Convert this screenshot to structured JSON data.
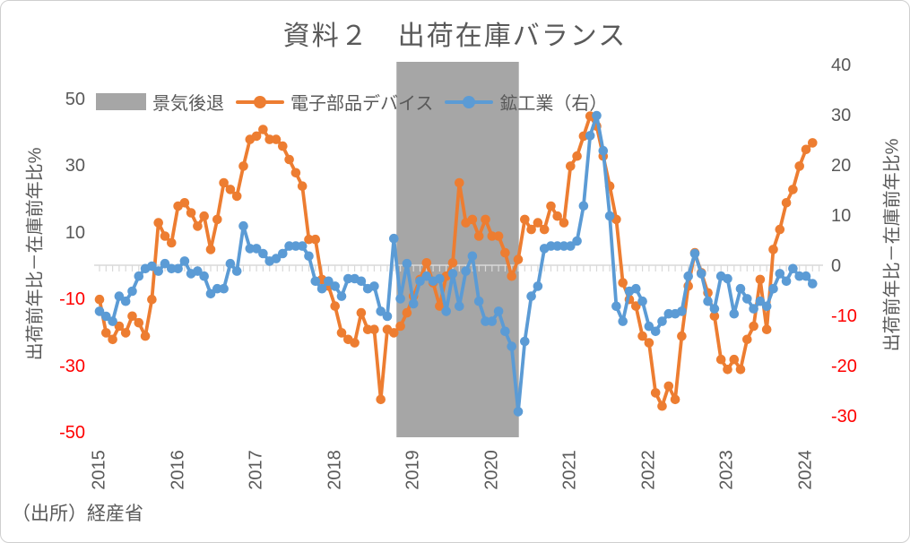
{
  "page": {
    "source": "（出所）経産省"
  },
  "chart_data": {
    "type": "line",
    "title": "資料２　出荷在庫バランス",
    "start_month": "2015-01",
    "frequency": "monthly",
    "x_tick_years": [
      "2015",
      "2016",
      "2017",
      "2018",
      "2019",
      "2020",
      "2021",
      "2022",
      "2023",
      "2024"
    ],
    "recession": {
      "label": "景気後退",
      "start": "2018-11",
      "end": "2020-05",
      "color": "#a6a6a6"
    },
    "left_axis": {
      "title": "出荷前年比－在庫前年比%",
      "tick_labels": [
        50,
        30,
        10,
        -10,
        -30,
        -50
      ],
      "range": [
        -50,
        50
      ]
    },
    "right_axis": {
      "title": "出荷前年比－在庫前年比%",
      "tick_labels": [
        40,
        30,
        20,
        10,
        0,
        -10,
        -20,
        -30
      ],
      "range": [
        -30,
        40
      ]
    },
    "colors": {
      "electronic_parts": "#ED7D31",
      "mining_industry": "#5B9BD5",
      "recession_band": "#a6a6a6",
      "zero_line": "#d9d9d9",
      "text": "#595959",
      "negative_tick": "#ff0000"
    },
    "series": [
      {
        "name": "電子部品デバイス",
        "axis": "left",
        "color": "#ED7D31",
        "values": [
          -10,
          -20,
          -22,
          -18,
          -20,
          -15,
          -17,
          -21,
          -10,
          13,
          9,
          7,
          18,
          19,
          16,
          12,
          15,
          5,
          14,
          25,
          23,
          21,
          30,
          38,
          39,
          41,
          38,
          38,
          36,
          32,
          28,
          24,
          8,
          8,
          -4,
          -6,
          -12,
          -20,
          -22,
          -23,
          -14,
          -19,
          -19,
          -40,
          -19,
          -20,
          -18,
          -14,
          -9,
          -4,
          1,
          -5,
          -12,
          -3,
          1,
          25,
          13,
          14,
          9,
          14,
          9,
          9,
          4,
          -3,
          2,
          14,
          11,
          13,
          11,
          18,
          15,
          13,
          30,
          33,
          39,
          45,
          42,
          33,
          24,
          14,
          -5,
          -10,
          -12,
          -21,
          -23,
          -38,
          -42,
          -36,
          -40,
          -21,
          -6,
          4,
          -2,
          -8,
          -15,
          -28,
          -31,
          -28,
          -31,
          -22,
          -18,
          -4,
          -19,
          5,
          11,
          19,
          23,
          30,
          35,
          37
        ]
      },
      {
        "name": "鉱工業（右）",
        "axis": "right",
        "color": "#5B9BD5",
        "values": [
          -9,
          -10,
          -11,
          -6,
          -7,
          -5,
          -2,
          -0.5,
          0,
          -1,
          0.5,
          -0.5,
          -0.5,
          1,
          -1.5,
          -1,
          -2,
          -5.5,
          -4.5,
          -4.5,
          0.5,
          -1,
          8,
          3.5,
          3.5,
          2.5,
          1,
          1.5,
          2.5,
          4,
          4,
          4,
          2,
          -3,
          -4.5,
          -3,
          -4,
          -6,
          -2.5,
          -2.5,
          -3,
          -4.5,
          -4,
          -9,
          -10,
          5.5,
          -6.5,
          0.5,
          -7.5,
          -3,
          -2,
          -3,
          -2.5,
          -9,
          -1.5,
          -8,
          -1,
          2,
          -7,
          -11,
          -11,
          -9,
          -13,
          -16,
          -29,
          -15,
          -6,
          -4,
          3.5,
          4,
          4,
          4,
          4,
          5,
          12,
          26,
          30,
          23,
          10,
          -8,
          -11,
          -5,
          -4.5,
          -7,
          -12,
          -13,
          -11,
          -9.5,
          -9.5,
          -9,
          -2,
          2.5,
          -1.5,
          -7,
          -8.5,
          -2,
          -2.5,
          -9.5,
          -4.5,
          -6.5,
          -8.5,
          -7,
          -8,
          -4.5,
          -1.5,
          -3,
          -0.5,
          -2,
          -2,
          -3.5
        ]
      }
    ]
  }
}
